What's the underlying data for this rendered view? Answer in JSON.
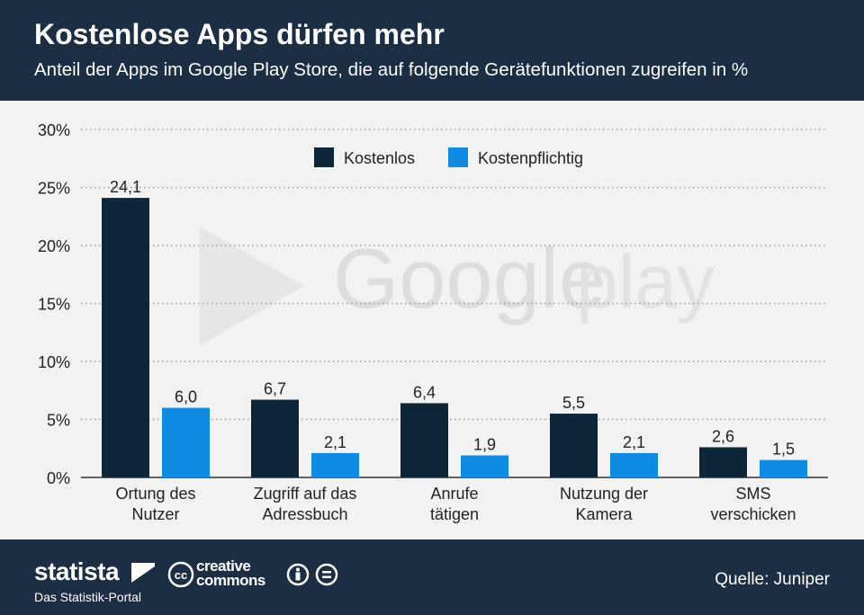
{
  "header": {
    "title": "Kostenlose Apps dürfen mehr",
    "subtitle": "Anteil der Apps im Google Play Store, die auf folgende Gerätefunktionen zugreifen in %"
  },
  "watermark": {
    "text_google": "Google",
    "text_play": "play"
  },
  "chart_data": {
    "type": "bar",
    "categories": [
      [
        "Ortung des",
        "Nutzer"
      ],
      [
        "Zugriff auf das",
        "Adressbuch"
      ],
      [
        "Anrufe",
        "tätigen"
      ],
      [
        "Nutzung der",
        "Kamera"
      ],
      [
        "SMS",
        "verschicken"
      ]
    ],
    "series": [
      {
        "name": "Kostenlos",
        "color": "#0d2639",
        "values": [
          24.1,
          6.7,
          6.4,
          5.5,
          2.6
        ],
        "labels": [
          "24,1",
          "6,7",
          "6,4",
          "5,5",
          "2,6"
        ]
      },
      {
        "name": "Kostenpflichtig",
        "color": "#0f8be3",
        "values": [
          6.0,
          2.1,
          1.9,
          2.1,
          1.5
        ],
        "labels": [
          "6,0",
          "2,1",
          "1,9",
          "2,1",
          "1,5"
        ]
      }
    ],
    "ylim": [
      0,
      30
    ],
    "yticks": [
      0,
      5,
      10,
      15,
      20,
      25,
      30
    ],
    "ytick_labels": [
      "0%",
      "5%",
      "10%",
      "15%",
      "20%",
      "25%",
      "30%"
    ],
    "grid": true,
    "legend": "top-center"
  },
  "footer": {
    "brand": "statista",
    "brand_sub": "Das Statistik-Portal",
    "cc_line1": "creative",
    "cc_line2": "commons",
    "source": "Quelle: Juniper"
  }
}
